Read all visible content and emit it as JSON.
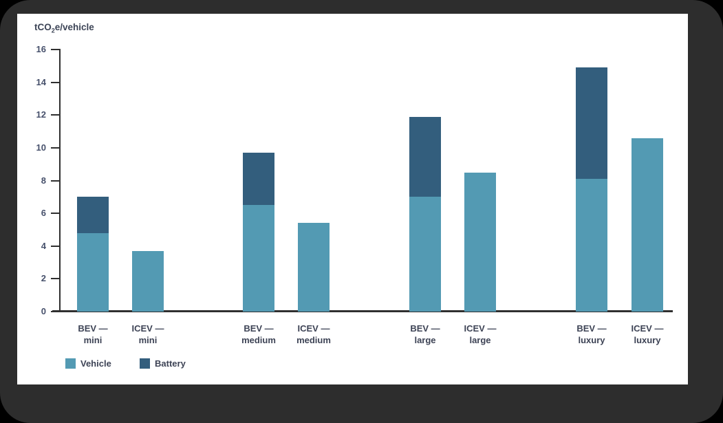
{
  "frame": {
    "outer_background": "#000000",
    "border_color": "#2d2d2d",
    "panel_background": "#ffffff"
  },
  "chart_data": {
    "type": "bar",
    "stacked": true,
    "title": "tCO2e/vehicle",
    "title_parts": {
      "pre": "tCO",
      "sub": "2",
      "post": "e/vehicle"
    },
    "categories": [
      {
        "id": "bev-mini",
        "line1": "BEV —",
        "line2": "mini"
      },
      {
        "id": "icev-mini",
        "line1": "ICEV —",
        "line2": "mini"
      },
      {
        "id": "bev-medium",
        "line1": "BEV —",
        "line2": "medium"
      },
      {
        "id": "icev-medium",
        "line1": "ICEV —",
        "line2": "medium"
      },
      {
        "id": "bev-large",
        "line1": "BEV —",
        "line2": "large"
      },
      {
        "id": "icev-large",
        "line1": "ICEV —",
        "line2": "large"
      },
      {
        "id": "bev-luxury",
        "line1": "BEV —",
        "line2": "luxury"
      },
      {
        "id": "icev-luxury",
        "line1": "ICEV —",
        "line2": "luxury"
      }
    ],
    "series": [
      {
        "name": "Vehicle",
        "color": "#539ab3",
        "values": [
          4.8,
          3.7,
          6.5,
          5.4,
          7.0,
          8.5,
          8.1,
          10.6
        ]
      },
      {
        "name": "Battery",
        "color": "#335e7d",
        "values": [
          2.2,
          0,
          3.2,
          0,
          4.9,
          0,
          6.8,
          0
        ]
      }
    ],
    "totals": [
      7.0,
      3.7,
      9.7,
      5.4,
      11.9,
      8.5,
      14.9,
      10.6
    ],
    "yticks": [
      0,
      2,
      4,
      6,
      8,
      10,
      12,
      14,
      16
    ],
    "ylim": [
      0,
      16
    ],
    "grid": false,
    "legend_position": "bottom-left",
    "axis_color": "#2f2f2f"
  }
}
